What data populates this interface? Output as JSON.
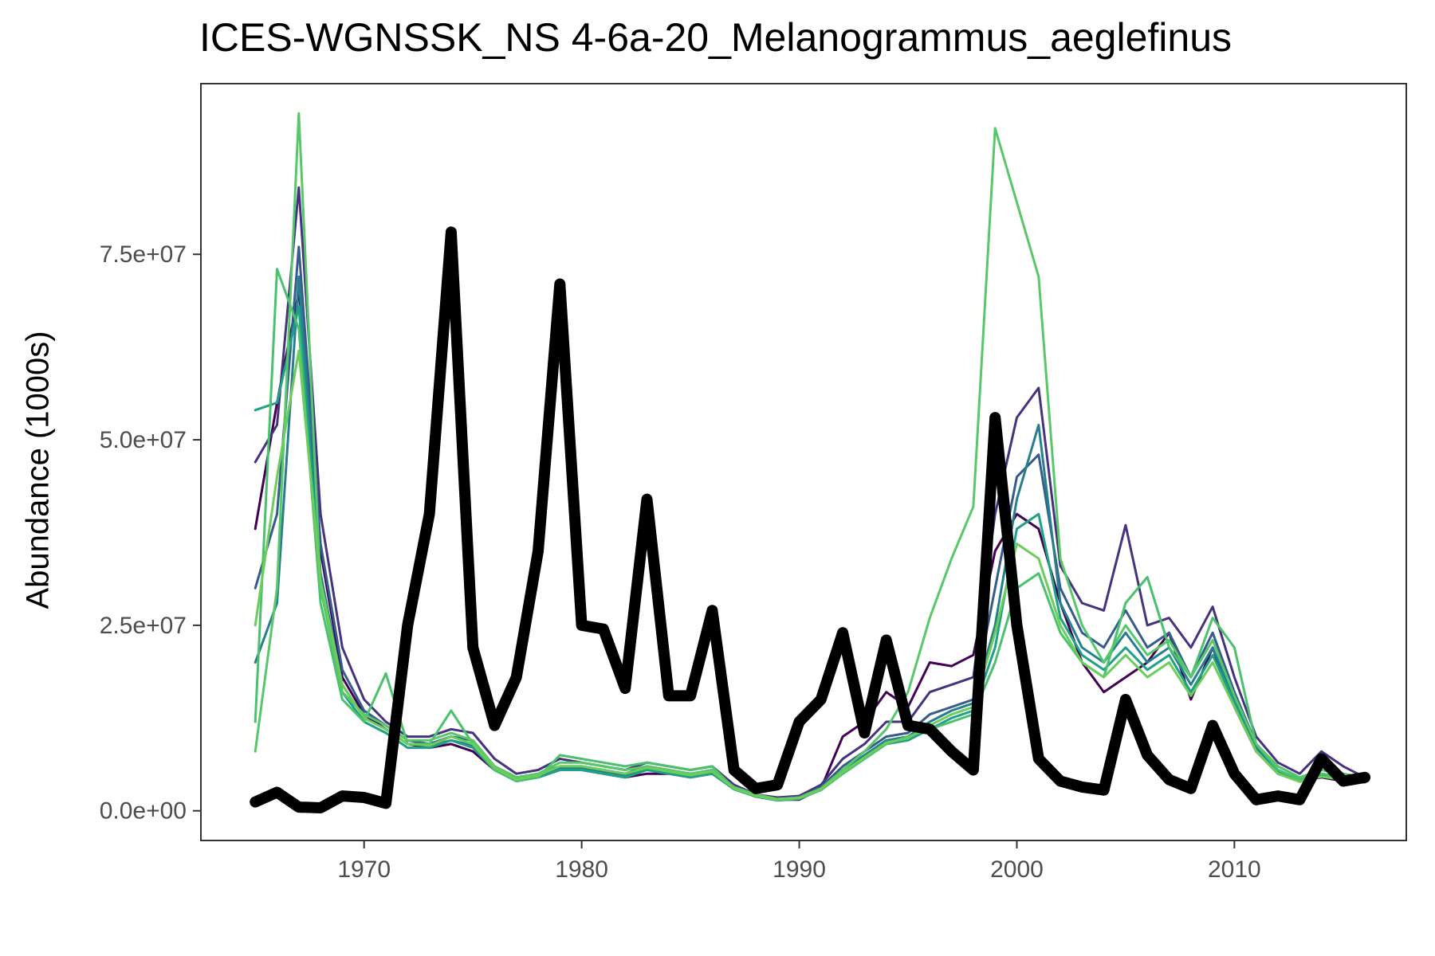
{
  "chart_data": {
    "type": "line",
    "title": "ICES-WGNSSK_NS  4-6a-20_Melanogrammus_aeglefinus",
    "xlabel": "",
    "ylabel": "Abundance (1000s)",
    "xlim": [
      1962.5,
      2017.9
    ],
    "ylim": [
      -4000000,
      98000000
    ],
    "x_ticks": [
      1970,
      1980,
      1990,
      2000,
      2010
    ],
    "x_tick_labels": [
      "1970",
      "1980",
      "1990",
      "2000",
      "2010"
    ],
    "y_ticks": [
      0,
      25000000,
      50000000,
      75000000
    ],
    "y_tick_labels": [
      "0.0e+00",
      "2.5e+07",
      "5.0e+07",
      "7.5e+07"
    ],
    "grid": false,
    "legend": "none",
    "colors": {
      "highlight": "#000000",
      "ensemble_palette": [
        "#440154",
        "#46327e",
        "#365c8d",
        "#277f8e",
        "#1fa187",
        "#4ac16d",
        "#57c86a",
        "#6ccd5a"
      ],
      "axis_text": "#4d4d4d",
      "panel_border": "#333333"
    },
    "x": [
      1965,
      1966,
      1967,
      1968,
      1969,
      1970,
      1971,
      1972,
      1973,
      1974,
      1975,
      1976,
      1977,
      1978,
      1979,
      1980,
      1981,
      1982,
      1983,
      1984,
      1985,
      1986,
      1987,
      1988,
      1989,
      1990,
      1991,
      1992,
      1993,
      1994,
      1995,
      1996,
      1997,
      1998,
      1999,
      2000,
      2001,
      2002,
      2003,
      2004,
      2005,
      2006,
      2007,
      2008,
      2009,
      2010,
      2011,
      2012,
      2013,
      2014,
      2015,
      2016
    ],
    "series": [
      {
        "color": "#000000",
        "style": "highlight",
        "values": [
          1200000,
          2500000,
          500000,
          400000,
          2000000,
          1800000,
          1000000,
          25000000,
          40000000,
          78000000,
          22000000,
          11500000,
          18000000,
          35000000,
          71000000,
          25000000,
          24500000,
          16500000,
          42000000,
          15500000,
          15500000,
          27000000,
          5500000,
          3000000,
          3500000,
          12000000,
          15000000,
          24000000,
          10500000,
          23000000,
          11500000,
          11000000,
          8000000,
          5500000,
          53000000,
          25000000,
          7000000,
          4000000,
          3200000,
          2800000,
          15000000,
          7500000,
          4200000,
          3000000,
          11500000,
          5000000,
          1500000,
          2000000,
          1500000,
          7000000,
          4000000,
          4500000
        ]
      },
      {
        "color": "#440154",
        "style": "ensemble",
        "values": [
          38000000,
          55000000,
          70000000,
          35000000,
          18000000,
          13000000,
          11000000,
          9000000,
          8500000,
          9000000,
          8000000,
          5500000,
          4000000,
          4500000,
          5500000,
          5500000,
          5000000,
          4500000,
          5000000,
          5000000,
          4500000,
          5000000,
          3000000,
          2000000,
          1500000,
          1500000,
          3000000,
          10000000,
          12000000,
          16000000,
          14000000,
          20000000,
          19500000,
          21000000,
          35000000,
          40000000,
          38000000,
          28000000,
          20000000,
          16000000,
          18000000,
          20000000,
          24000000,
          15000000,
          22000000,
          14000000,
          8000000,
          5000000,
          4000000,
          4500000,
          4000000,
          4000000
        ]
      },
      {
        "color": "#46327e",
        "style": "ensemble",
        "values": [
          47000000,
          52000000,
          84000000,
          40000000,
          22000000,
          15000000,
          12000000,
          10000000,
          10000000,
          11000000,
          10500000,
          7000000,
          5000000,
          5500000,
          7000000,
          6500000,
          6000000,
          5500000,
          6500000,
          6000000,
          5500000,
          6000000,
          3500000,
          2200000,
          1800000,
          2000000,
          3500000,
          7000000,
          9000000,
          12000000,
          12000000,
          16000000,
          17000000,
          18000000,
          40000000,
          53000000,
          57000000,
          33000000,
          28000000,
          27000000,
          38500000,
          25000000,
          26000000,
          22000000,
          27500000,
          18000000,
          10000000,
          6500000,
          5000000,
          8000000,
          6000000,
          4500000
        ]
      },
      {
        "color": "#365c8d",
        "style": "ensemble",
        "values": [
          30000000,
          40000000,
          76000000,
          36000000,
          19000000,
          13500000,
          11500000,
          9500000,
          9000000,
          10000000,
          9500000,
          6000000,
          4500000,
          5000000,
          6000000,
          6000000,
          5500000,
          5000000,
          6000000,
          5500000,
          5000000,
          5500000,
          3200000,
          2100000,
          1600000,
          1800000,
          3200000,
          6000000,
          8000000,
          10000000,
          10500000,
          13000000,
          14000000,
          15000000,
          30000000,
          45000000,
          48000000,
          30000000,
          24000000,
          22000000,
          27000000,
          22000000,
          24000000,
          18000000,
          24000000,
          16000000,
          9000000,
          6000000,
          4500000,
          5500000,
          5000000,
          4200000
        ]
      },
      {
        "color": "#277f8e",
        "style": "ensemble",
        "values": [
          20000000,
          28000000,
          72000000,
          32000000,
          17000000,
          12500000,
          11000000,
          9000000,
          8800000,
          9500000,
          8800000,
          5800000,
          4200000,
          4800000,
          5800000,
          5800000,
          5200000,
          4800000,
          5800000,
          5200000,
          4800000,
          5200000,
          3000000,
          2000000,
          1500000,
          1700000,
          3000000,
          5500000,
          7500000,
          9500000,
          10000000,
          12000000,
          13500000,
          14500000,
          25000000,
          42000000,
          52000000,
          28000000,
          22000000,
          20000000,
          24000000,
          20000000,
          22000000,
          17000000,
          22000000,
          15000000,
          8500000,
          5500000,
          4200000,
          5000000,
          4500000,
          4000000
        ]
      },
      {
        "color": "#1fa187",
        "style": "ensemble",
        "values": [
          54000000,
          55000000,
          68000000,
          30000000,
          16000000,
          12000000,
          10500000,
          8500000,
          8500000,
          9500000,
          8500000,
          5500000,
          4000000,
          4500000,
          5500000,
          5500000,
          5000000,
          4500000,
          5500000,
          5000000,
          4500000,
          5000000,
          2900000,
          1900000,
          1400000,
          1600000,
          2800000,
          5000000,
          7000000,
          9000000,
          9500000,
          11000000,
          12500000,
          13500000,
          22000000,
          38000000,
          40000000,
          26000000,
          21000000,
          19000000,
          22000000,
          19000000,
          21000000,
          16000000,
          21000000,
          14500000,
          8000000,
          5200000,
          4000000,
          4800000,
          4300000,
          3900000
        ]
      },
      {
        "color": "#4ac16d",
        "style": "ensemble",
        "values": [
          12000000,
          73000000,
          65000000,
          28000000,
          15000000,
          12000000,
          18500000,
          9000000,
          9000000,
          13500000,
          9000000,
          5500000,
          4000000,
          4500000,
          7500000,
          7000000,
          6500000,
          6000000,
          6500000,
          6000000,
          5500000,
          6000000,
          3000000,
          2000000,
          1500000,
          1700000,
          2800000,
          5000000,
          7000000,
          9000000,
          10000000,
          11000000,
          12000000,
          13000000,
          20000000,
          30000000,
          32000000,
          24000000,
          20000000,
          18000000,
          28000000,
          31500000,
          22000000,
          18000000,
          26000000,
          22000000,
          9000000,
          5500000,
          4200000,
          5000000,
          4500000,
          4000000
        ]
      },
      {
        "color": "#57c86a",
        "style": "ensemble",
        "values": [
          8000000,
          30000000,
          94000000,
          30000000,
          16000000,
          13000000,
          11500000,
          9500000,
          9500000,
          10500000,
          9500000,
          6000000,
          4500000,
          5000000,
          6500000,
          6500000,
          6000000,
          5500000,
          6000000,
          5500000,
          5000000,
          5500000,
          3200000,
          2200000,
          1600000,
          1800000,
          3000000,
          5500000,
          8000000,
          11000000,
          16000000,
          26000000,
          34000000,
          41000000,
          92000000,
          82000000,
          72000000,
          34000000,
          25000000,
          20000000,
          25000000,
          21000000,
          23000000,
          18000000,
          23000000,
          15500000,
          9000000,
          6000000,
          4500000,
          5500000,
          5000000,
          4500000
        ]
      },
      {
        "color": "#6ccd5a",
        "style": "ensemble",
        "values": [
          25000000,
          45000000,
          62000000,
          31000000,
          17000000,
          12500000,
          11000000,
          9000000,
          8800000,
          10000000,
          9000000,
          5800000,
          4200000,
          4800000,
          6000000,
          6000000,
          5500000,
          5000000,
          5800000,
          5300000,
          4800000,
          5300000,
          3000000,
          2000000,
          1500000,
          1700000,
          2900000,
          5200000,
          7200000,
          9200000,
          9800000,
          11500000,
          13000000,
          14000000,
          24000000,
          36000000,
          34000000,
          25000000,
          20000000,
          18000000,
          21000000,
          18000000,
          20000000,
          15500000,
          20000000,
          14000000,
          8000000,
          5000000,
          3900000,
          4600000,
          4200000,
          3800000
        ]
      }
    ]
  }
}
